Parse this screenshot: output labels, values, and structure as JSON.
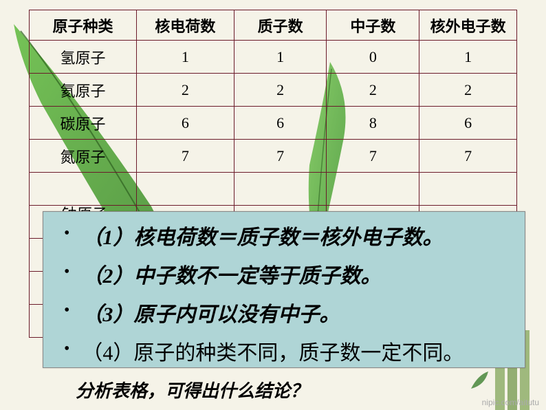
{
  "table": {
    "headers": [
      "原子种类",
      "核电荷数",
      "质子数",
      "中子数",
      "核外电子数"
    ],
    "rows": [
      [
        "氢原子",
        "1",
        "1",
        "0",
        "1"
      ],
      [
        "氦原子",
        "2",
        "2",
        "2",
        "2"
      ],
      [
        "碳原子",
        "6",
        "6",
        "8",
        "6"
      ],
      [
        "氮原子",
        "7",
        "7",
        "7",
        "7"
      ]
    ],
    "partial_row_label": "钠原子",
    "border_color": "#6b1a2a",
    "cell_fontsize": 22
  },
  "overlay": {
    "bg_color": "#afd5d6",
    "items": [
      {
        "text": "（1）核电荷数＝质子数＝核外电子数。",
        "style": "kai"
      },
      {
        "text": "（2）中子数不一定等于质子数。",
        "style": "kai"
      },
      {
        "text": "（3）原子内可以没有中子。",
        "style": "kai"
      },
      {
        "text": "（4）原子的种类不同，质子数一定不同。",
        "style": "normal"
      }
    ]
  },
  "caption": "分析表格，可得出什么结论？",
  "watermark": "nipic.com/aitutu",
  "leaf": {
    "fill_colors": [
      "#4a9b3a",
      "#6abe4a",
      "#3d8030"
    ],
    "stem_color": "#7aa050"
  }
}
